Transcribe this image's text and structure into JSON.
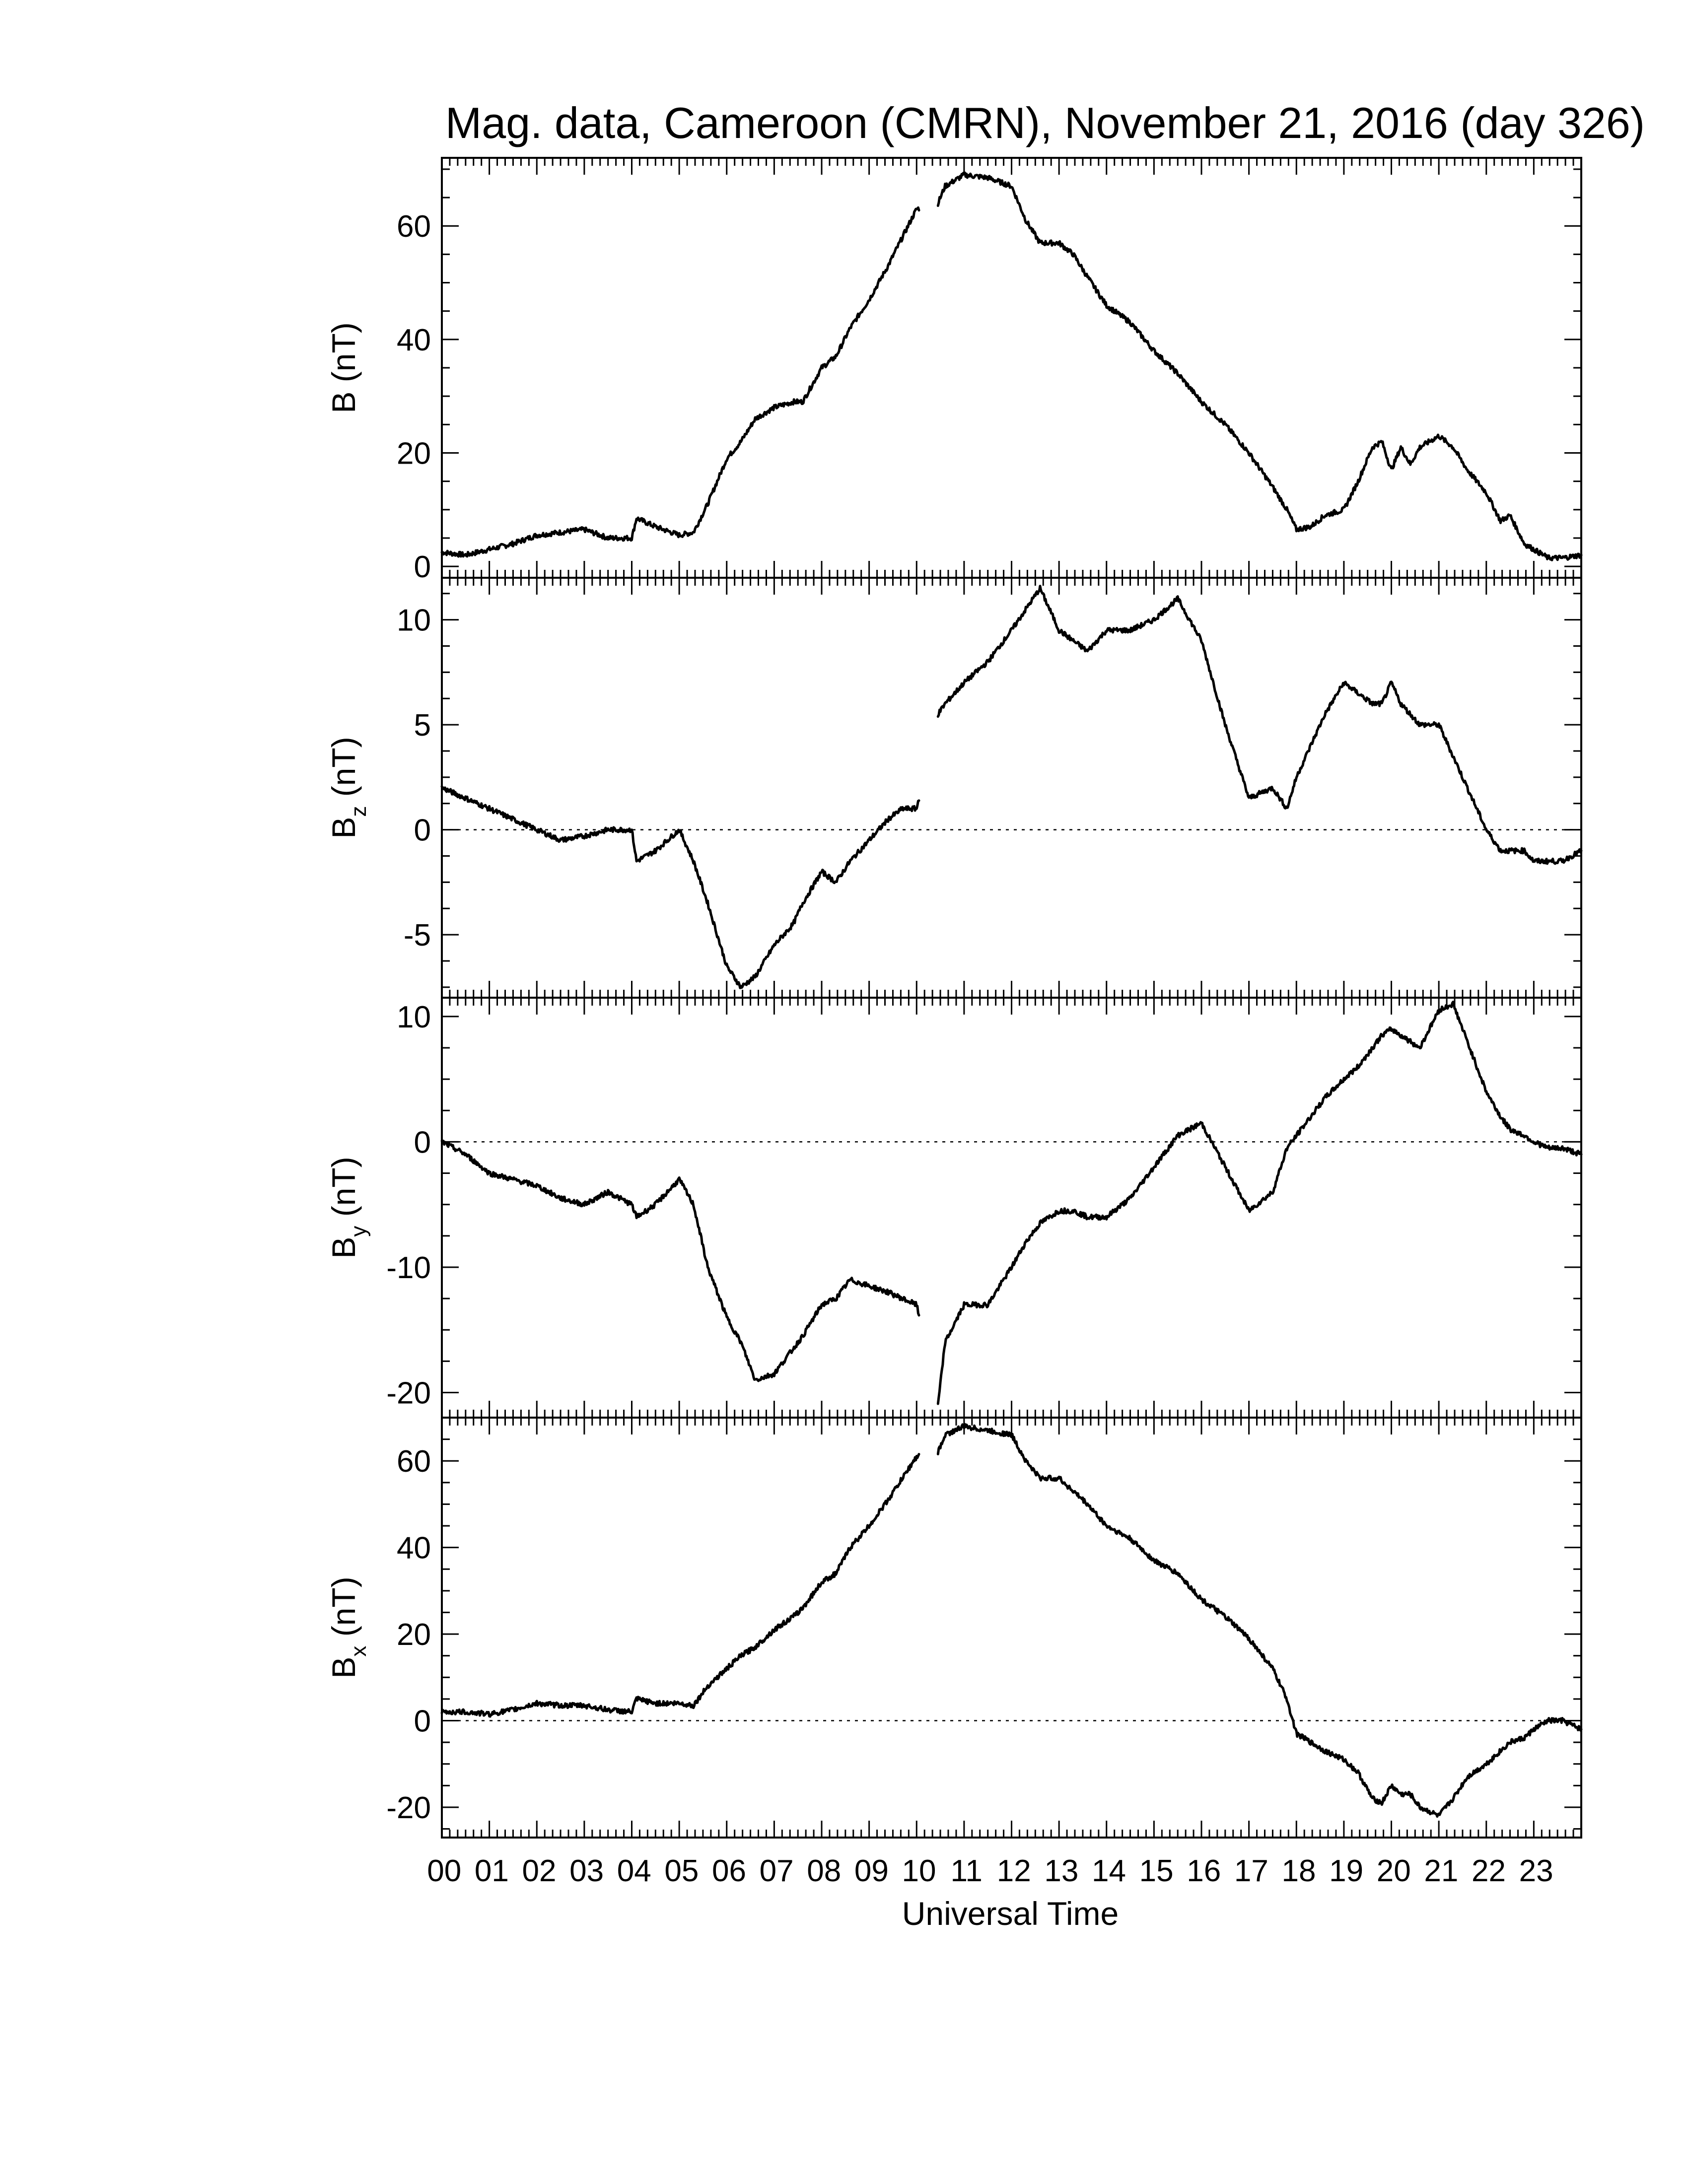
{
  "chart_data": {
    "type": "line",
    "title": "Mag. data, Cameroon (CMRN), November 21, 2016 (day 326)",
    "xlabel": "Universal Time",
    "x_tick_labels": [
      "00",
      "01",
      "02",
      "03",
      "04",
      "05",
      "06",
      "07",
      "08",
      "09",
      "10",
      "11",
      "12",
      "13",
      "14",
      "15",
      "16",
      "17",
      "18",
      "19",
      "20",
      "21",
      "22",
      "23"
    ],
    "xlim": [
      0,
      24
    ],
    "data_gap_hours": [
      10.05,
      10.45
    ],
    "panels": [
      {
        "label_main": "B",
        "label_sub": "",
        "label_unit": " (nT)",
        "ylim": [
          -2,
          72
        ],
        "y_ticks": [
          0,
          20,
          40,
          60
        ],
        "y_tick_labels": [
          "0",
          "20",
          "40",
          "60"
        ],
        "zero_line": false,
        "series": [
          {
            "x": [
              0,
              0.5,
              1,
              1.5,
              2,
              2.5,
              3,
              3.5,
              4,
              4.1,
              4.5,
              5,
              5.3,
              5.6,
              6,
              6.3,
              6.6,
              7,
              7.4,
              7.6,
              8,
              8.3,
              8.6,
              9,
              9.4,
              9.7,
              10,
              10.45,
              10.6,
              11,
              11.5,
              12,
              12.3,
              12.6,
              13,
              13.3,
              13.6,
              14,
              14.5,
              15,
              15.5,
              16,
              16.5,
              17,
              17.5,
              17.8,
              18,
              18.3,
              18.6,
              19,
              19.3,
              19.6,
              19.8,
              20,
              20.2,
              20.4,
              20.6,
              21,
              21.3,
              21.6,
              22,
              22.3,
              22.5,
              22.8,
              23,
              23.3,
              23.6,
              24
            ],
            "y": [
              2.5,
              2.0,
              3.0,
              4.0,
              5.5,
              6.0,
              6.5,
              5.0,
              5.0,
              8.5,
              7.0,
              5.5,
              6.0,
              11.0,
              19.0,
              22.0,
              26.0,
              28.0,
              29.0,
              29.0,
              35.0,
              37.0,
              42.0,
              47.0,
              53.0,
              58.0,
              63.0,
              64.0,
              67.0,
              69.0,
              68.5,
              67.0,
              61.0,
              57.0,
              57.0,
              55.0,
              51.0,
              46.0,
              43.0,
              38.0,
              34.0,
              29.0,
              25.0,
              20.0,
              14.0,
              10.0,
              6.5,
              7.0,
              9.0,
              10.0,
              15.0,
              21.0,
              22.0,
              17.0,
              21.0,
              18.0,
              21.0,
              23.0,
              21.0,
              17.0,
              13.0,
              8.0,
              9.0,
              4.0,
              3.0,
              1.5,
              1.5,
              2.0
            ]
          }
        ]
      },
      {
        "label_main": "B",
        "label_sub": "z",
        "label_unit": " (nT)",
        "ylim": [
          -8,
          12
        ],
        "y_ticks": [
          -5,
          0,
          5,
          10
        ],
        "y_tick_labels": [
          "-5",
          "0",
          "5",
          "10"
        ],
        "zero_line": true,
        "series": [
          {
            "x": [
              0,
              0.5,
              1,
              1.5,
              2,
              2.5,
              3,
              3.5,
              4,
              4.1,
              4.5,
              5,
              5.3,
              5.6,
              6,
              6.3,
              6.6,
              7,
              7.4,
              7.6,
              8,
              8.3,
              8.6,
              9,
              9.4,
              9.7,
              10,
              10.45,
              10.6,
              11,
              11.5,
              12,
              12.3,
              12.6,
              13,
              13.3,
              13.6,
              14,
              14.5,
              15,
              15.5,
              16,
              16.5,
              17,
              17.5,
              17.8,
              18,
              18.3,
              18.6,
              19,
              19.3,
              19.6,
              19.8,
              20,
              20.2,
              20.4,
              20.6,
              21,
              21.3,
              21.6,
              22,
              22.3,
              22.5,
              22.8,
              23,
              23.3,
              23.6,
              24
            ],
            "y": [
              2.0,
              1.5,
              1.0,
              0.5,
              0.0,
              -0.5,
              -0.3,
              0.0,
              0.0,
              -1.5,
              -1.0,
              0.0,
              -1.5,
              -3.5,
              -6.5,
              -7.5,
              -7.0,
              -5.5,
              -4.5,
              -3.5,
              -2.0,
              -2.5,
              -1.5,
              -0.5,
              0.5,
              1.0,
              1.0,
              5.5,
              6.0,
              7.0,
              8.0,
              9.5,
              10.5,
              11.5,
              9.5,
              9.0,
              8.5,
              9.5,
              9.5,
              10.0,
              11.0,
              9.0,
              5.0,
              1.5,
              2.0,
              1.0,
              2.5,
              4.0,
              5.5,
              7.0,
              6.5,
              6.0,
              6.0,
              7.0,
              6.0,
              5.5,
              5.0,
              5.0,
              3.5,
              2.0,
              0.0,
              -1.0,
              -1.0,
              -1.0,
              -1.5,
              -1.5,
              -1.5,
              -1.0
            ]
          }
        ]
      },
      {
        "label_main": "B",
        "label_sub": "y",
        "label_unit": " (nT)",
        "ylim": [
          -22,
          11.5
        ],
        "y_ticks": [
          -20,
          -10,
          0,
          10
        ],
        "y_tick_labels": [
          "-20",
          "-10",
          "0",
          "10"
        ],
        "zero_line": true,
        "series": [
          {
            "x": [
              0,
              0.5,
              1,
              1.5,
              2,
              2.5,
              3,
              3.5,
              4,
              4.1,
              4.5,
              5,
              5.3,
              5.6,
              6,
              6.3,
              6.6,
              7,
              7.4,
              7.6,
              8,
              8.3,
              8.6,
              9,
              9.4,
              9.7,
              10,
              10.45,
              10.6,
              11,
              11.5,
              12,
              12.3,
              12.6,
              13,
              13.3,
              13.6,
              14,
              14.5,
              15,
              15.5,
              16,
              16.5,
              17,
              17.5,
              17.8,
              18,
              18.3,
              18.6,
              19,
              19.3,
              19.6,
              19.8,
              20,
              20.2,
              20.4,
              20.6,
              21,
              21.3,
              21.6,
              22,
              22.3,
              22.5,
              22.8,
              23,
              23.3,
              23.6,
              24
            ],
            "y": [
              0.0,
              -1.0,
              -2.5,
              -3.0,
              -3.5,
              -4.5,
              -5.0,
              -4.0,
              -5.0,
              -6.0,
              -5.0,
              -3.0,
              -5.0,
              -10.0,
              -14.0,
              -16.0,
              -19.0,
              -18.5,
              -16.5,
              -15.5,
              -13.0,
              -12.5,
              -11.0,
              -11.5,
              -12.0,
              -12.5,
              -13.0,
              -21.0,
              -16.0,
              -13.0,
              -13.0,
              -10.0,
              -8.0,
              -6.5,
              -5.5,
              -5.5,
              -6.0,
              -6.0,
              -4.5,
              -2.0,
              0.5,
              1.5,
              -2.0,
              -5.5,
              -4.0,
              -0.5,
              0.5,
              2.0,
              3.5,
              5.0,
              6.0,
              7.5,
              8.5,
              9.0,
              8.5,
              8.0,
              7.5,
              10.5,
              11.0,
              8.0,
              4.0,
              2.0,
              1.0,
              0.5,
              0.0,
              -0.5,
              -0.5,
              -1.0
            ]
          }
        ]
      },
      {
        "label_main": "B",
        "label_sub": "x",
        "label_unit": " (nT)",
        "ylim": [
          -27,
          70
        ],
        "y_ticks": [
          -20,
          0,
          20,
          40,
          60
        ],
        "y_tick_labels": [
          "-20",
          "0",
          "20",
          "40",
          "60"
        ],
        "zero_line": true,
        "series": [
          {
            "x": [
              0,
              0.5,
              1,
              1.5,
              2,
              2.5,
              3,
              3.5,
              4,
              4.1,
              4.5,
              5,
              5.3,
              5.6,
              6,
              6.3,
              6.6,
              7,
              7.4,
              7.6,
              8,
              8.3,
              8.6,
              9,
              9.4,
              9.7,
              10,
              10.45,
              10.6,
              11,
              11.5,
              12,
              12.3,
              12.6,
              13,
              13.3,
              13.6,
              14,
              14.5,
              15,
              15.5,
              16,
              16.5,
              17,
              17.5,
              17.8,
              18,
              18.3,
              18.6,
              19,
              19.3,
              19.6,
              19.8,
              20,
              20.2,
              20.4,
              20.6,
              21,
              21.3,
              21.6,
              22,
              22.3,
              22.5,
              22.8,
              23,
              23.3,
              23.6,
              24
            ],
            "y": [
              2.0,
              2.0,
              1.5,
              2.5,
              4.0,
              3.5,
              3.5,
              2.5,
              2.0,
              5.0,
              4.0,
              4.0,
              3.5,
              8.0,
              12.0,
              15.0,
              17.0,
              21.0,
              24.0,
              26.0,
              32.0,
              34.0,
              40.0,
              45.0,
              51.0,
              56.0,
              61.0,
              62.0,
              66.0,
              68.0,
              67.0,
              66.0,
              60.0,
              56.0,
              56.0,
              53.0,
              50.0,
              45.0,
              42.0,
              37.0,
              34.0,
              28.0,
              24.0,
              19.0,
              12.0,
              5.0,
              -3.0,
              -5.0,
              -7.0,
              -9.0,
              -12.0,
              -18.0,
              -19.0,
              -15.0,
              -17.0,
              -17.0,
              -20.0,
              -22.0,
              -18.0,
              -13.0,
              -10.0,
              -7.0,
              -5.0,
              -4.0,
              -2.0,
              0.0,
              0.0,
              -2.0
            ]
          }
        ]
      }
    ]
  }
}
